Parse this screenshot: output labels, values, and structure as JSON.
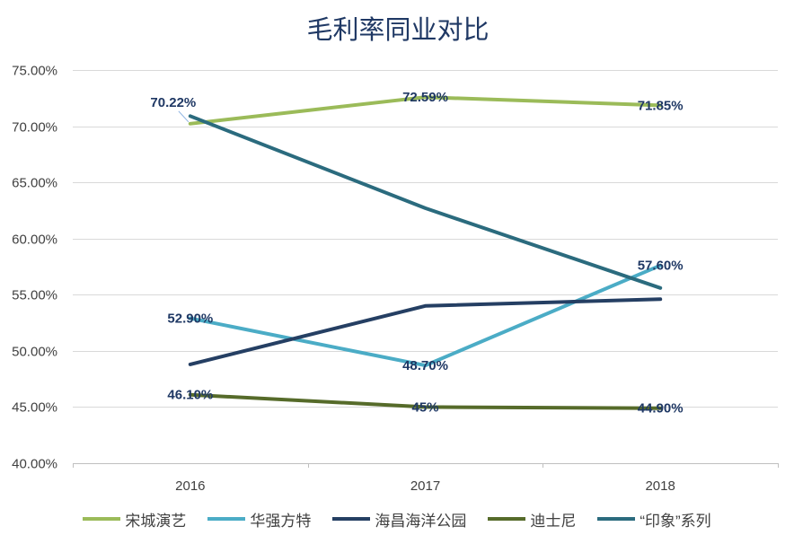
{
  "chart_data": {
    "type": "line",
    "title": "毛利率同业对比",
    "categories": [
      "2016",
      "2017",
      "2018"
    ],
    "ylim": [
      40,
      75
    ],
    "ytick_labels": [
      "40.00%",
      "45.00%",
      "50.00%",
      "55.00%",
      "60.00%",
      "65.00%",
      "70.00%",
      "75.00%"
    ],
    "grid": true,
    "legend": "bottom",
    "series": [
      {
        "name": "宋城演艺",
        "color": "#9BBB59",
        "values": [
          70.22,
          72.59,
          71.85
        ],
        "labels": [
          "70.22%",
          "72.59%",
          "71.85%"
        ]
      },
      {
        "name": "华强方特",
        "color": "#4BACC6",
        "values": [
          52.9,
          48.7,
          57.6
        ],
        "labels": [
          "52.90%",
          "48.70%",
          "57.60%"
        ]
      },
      {
        "name": "海昌海洋公园",
        "color": "#253F63",
        "values": [
          48.8,
          54.0,
          54.6
        ],
        "labels": []
      },
      {
        "name": "迪士尼",
        "color": "#566B2A",
        "values": [
          46.1,
          45,
          44.9
        ],
        "labels": [
          "46.10%",
          "45%",
          "44.90%"
        ]
      },
      {
        "name": "“印象”系列",
        "color": "#2B6B7E",
        "values": [
          70.9,
          62.7,
          55.6
        ],
        "labels": []
      }
    ]
  }
}
